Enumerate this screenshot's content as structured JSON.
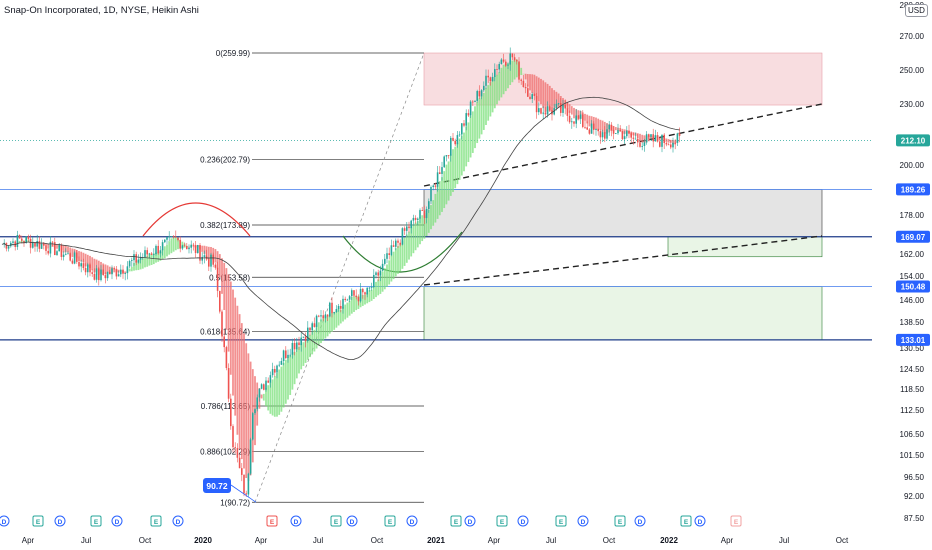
{
  "header": {
    "title": "Snap-On Incorporated, 1D, NYSE, Heikin Ashi",
    "currency": "USD"
  },
  "chart_data": {
    "type": "candlestick",
    "symbol": "Snap-On Incorporated",
    "interval": "1D",
    "exchange": "NYSE",
    "style": "Heikin Ashi",
    "y_axis_ticks": [
      280.0,
      270.0,
      250.0,
      230.0,
      200.0,
      178.0,
      162.0,
      154.0,
      146.0,
      138.5,
      130.5,
      124.5,
      118.5,
      112.5,
      106.5,
      101.5,
      96.5,
      92.0,
      87.5
    ],
    "x_axis_ticks": [
      "Apr",
      "Jul",
      "Oct",
      "2020",
      "Apr",
      "Jul",
      "Oct",
      "2021",
      "Apr",
      "Jul",
      "Oct",
      "2022",
      "Apr",
      "Jul",
      "Oct"
    ],
    "price_tags": [
      {
        "value": 212.1,
        "label": "212.10",
        "color": "#26a69a"
      },
      {
        "value": 189.26,
        "label": "189.26",
        "color": "#2962ff"
      },
      {
        "value": 169.07,
        "label": "169.07",
        "color": "#2962ff"
      },
      {
        "value": 150.48,
        "label": "150.48",
        "color": "#2962ff"
      },
      {
        "value": 133.01,
        "label": "133.01",
        "color": "#2962ff"
      }
    ],
    "fibonacci_levels": [
      {
        "ratio": "0",
        "value": 259.99,
        "label": "0(259.99)"
      },
      {
        "ratio": "0.236",
        "value": 202.79,
        "label": "0.236(202.79)"
      },
      {
        "ratio": "0.382",
        "value": 173.89,
        "label": "0.382(173.89)"
      },
      {
        "ratio": "0.5",
        "value": 153.58,
        "label": "0.5(153.58)"
      },
      {
        "ratio": "0.618",
        "value": 135.64,
        "label": "0.618(135.64)"
      },
      {
        "ratio": "0.786",
        "value": 113.65,
        "label": "0.786(113.65)"
      },
      {
        "ratio": "0.886",
        "value": 102.29,
        "label": "0.886(102.29)"
      },
      {
        "ratio": "1",
        "value": 90.72,
        "label": "1(90.72)"
      }
    ],
    "low_marker": {
      "value": 90.72,
      "label": "90.72"
    },
    "zones": [
      {
        "name": "resistance",
        "top": 259.99,
        "bottom": 229.5,
        "color": "#f8dde0"
      },
      {
        "name": "range",
        "top": 189.26,
        "bottom": 169.07,
        "color": "#e4e4e4"
      },
      {
        "name": "wedge",
        "top": 169.07,
        "bottom": 161.0,
        "color": "#e9f5e6"
      },
      {
        "name": "support",
        "top": 150.48,
        "bottom": 133.01,
        "color": "#e9f5e6"
      }
    ],
    "event_markers": [
      "D",
      "E",
      "D",
      "E",
      "D",
      "E",
      "D",
      "E",
      "D",
      "E",
      "D",
      "E",
      "D",
      "E",
      "D",
      "E",
      "D",
      "E",
      "D",
      "E",
      "D",
      "E",
      "D",
      "E",
      "D",
      "E"
    ],
    "series_trend": [
      [
        "2019-03-01",
        166
      ],
      [
        "2019-04-01",
        168
      ],
      [
        "2019-05-01",
        166
      ],
      [
        "2019-06-01",
        163
      ],
      [
        "2019-07-01",
        159
      ],
      [
        "2019-08-01",
        154
      ],
      [
        "2019-09-01",
        156
      ],
      [
        "2019-10-01",
        160
      ],
      [
        "2019-11-01",
        164
      ],
      [
        "2019-12-01",
        168
      ],
      [
        "2020-01-01",
        164
      ],
      [
        "2020-02-01",
        158
      ],
      [
        "2020-03-01",
        105
      ],
      [
        "2020-03-23",
        91
      ],
      [
        "2020-04-01",
        113
      ],
      [
        "2020-05-01",
        124
      ],
      [
        "2020-06-01",
        131
      ],
      [
        "2020-07-01",
        136
      ],
      [
        "2020-08-01",
        143
      ],
      [
        "2020-09-01",
        147
      ],
      [
        "2020-10-01",
        148
      ],
      [
        "2020-11-01",
        160
      ],
      [
        "2020-12-01",
        172
      ],
      [
        "2021-01-01",
        180
      ],
      [
        "2021-02-01",
        205
      ],
      [
        "2021-03-01",
        220
      ],
      [
        "2021-04-01",
        240
      ],
      [
        "2021-05-01",
        256
      ],
      [
        "2021-05-20",
        258
      ],
      [
        "2021-06-01",
        245
      ],
      [
        "2021-07-01",
        227
      ],
      [
        "2021-08-01",
        227
      ],
      [
        "2021-09-01",
        222
      ],
      [
        "2021-10-01",
        215
      ],
      [
        "2021-11-01",
        217
      ],
      [
        "2021-12-01",
        212
      ],
      [
        "2022-01-01",
        212
      ],
      [
        "2022-02-10",
        212
      ]
    ]
  }
}
